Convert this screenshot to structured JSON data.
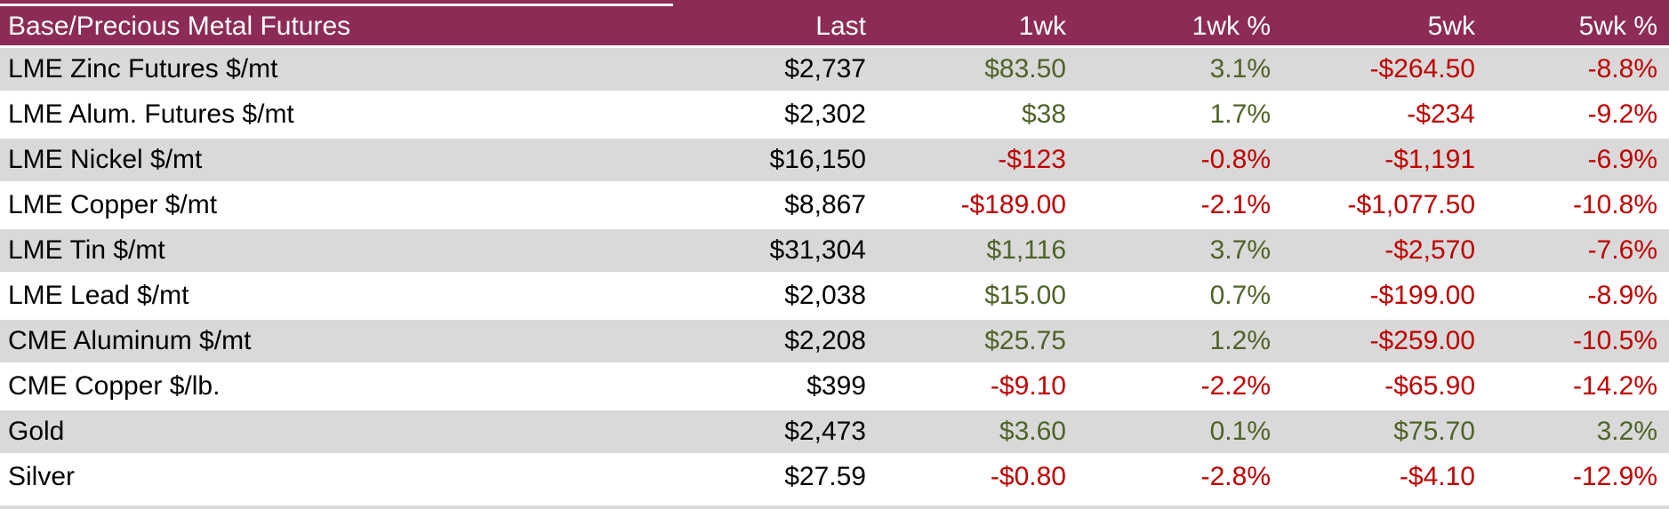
{
  "style": {
    "header_bg": "#8C2B55",
    "header_text": "#FFFFFF",
    "stripe_bg": "#D9D9D9",
    "row_bg": "#FFFFFF",
    "positive_text": "#4F6228",
    "negative_text": "#C00000",
    "default_text": "#000000"
  },
  "chart_data": {
    "type": "table",
    "title": "Base/Precious Metal Futures",
    "columns": [
      "Base/Precious Metal Futures",
      "Last",
      "1wk",
      "1wk %",
      "5wk",
      "5wk %"
    ],
    "rows": [
      [
        "LME Zinc Futures $/mt",
        "$2,737",
        "$83.50",
        "3.1%",
        "-$264.50",
        "-8.8%"
      ],
      [
        "LME Alum. Futures $/mt",
        "$2,302",
        "$38",
        "1.7%",
        "-$234",
        "-9.2%"
      ],
      [
        "LME Nickel $/mt",
        "$16,150",
        "-$123",
        "-0.8%",
        "-$1,191",
        "-6.9%"
      ],
      [
        "LME Copper $/mt",
        "$8,867",
        "-$189.00",
        "-2.1%",
        "-$1,077.50",
        "-10.8%"
      ],
      [
        "LME Tin $/mt",
        "$31,304",
        "$1,116",
        "3.7%",
        "-$2,570",
        "-7.6%"
      ],
      [
        "LME Lead $/mt",
        "$2,038",
        "$15.00",
        "0.7%",
        "-$199.00",
        "-8.9%"
      ],
      [
        "CME Aluminum $/mt",
        "$2,208",
        "$25.75",
        "1.2%",
        "-$259.00",
        "-10.5%"
      ],
      [
        "CME Copper $/lb.",
        "$399",
        "-$9.10",
        "-2.2%",
        "-$65.90",
        "-14.2%"
      ],
      [
        "Gold",
        "$2,473",
        "$3.60",
        "0.1%",
        "$75.70",
        "3.2%"
      ],
      [
        "Silver",
        "$27.59",
        "-$0.80",
        "-2.8%",
        "-$4.10",
        "-12.9%"
      ]
    ]
  }
}
